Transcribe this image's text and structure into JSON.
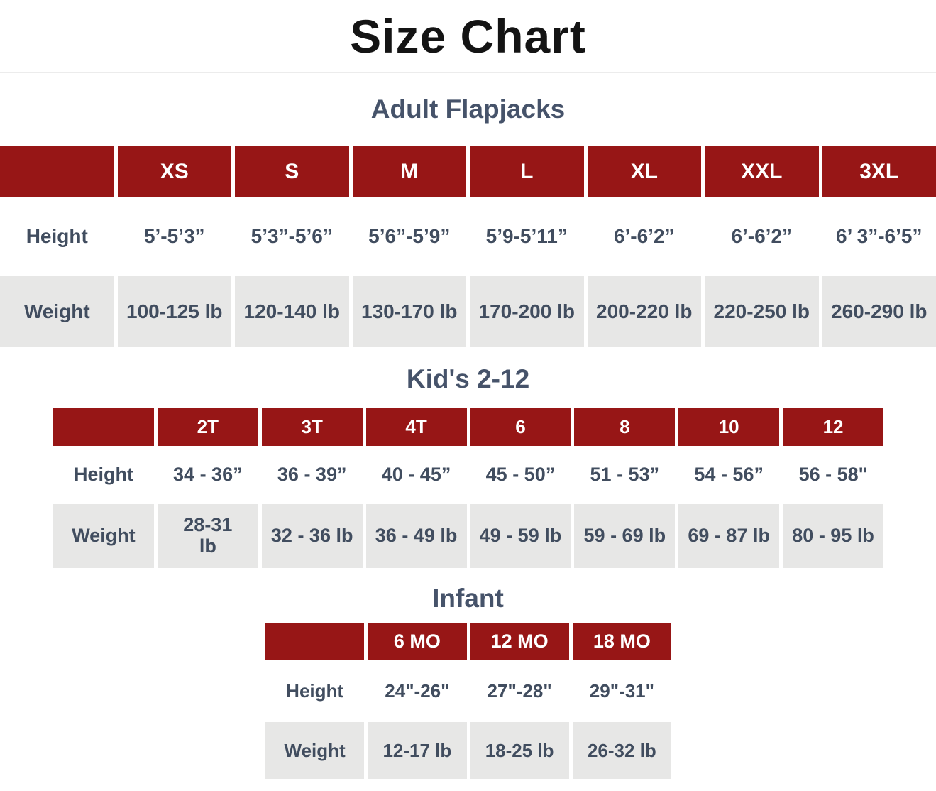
{
  "page": {
    "title": "Size Chart"
  },
  "colors": {
    "header_red": "#971616",
    "row_gray": "#e7e7e6",
    "text_slate": "#414d5f",
    "section_title_slate": "#46536a",
    "title_black": "#141414"
  },
  "tables": [
    {
      "section_title": "Adult Flapjacks",
      "row_labels": {
        "height": "Height",
        "weight": "Weight"
      },
      "sizes": [
        "XS",
        "S",
        "M",
        "L",
        "XL",
        "XXL",
        "3XL"
      ],
      "heights": [
        "5’-5’3”",
        "5’3”-5’6”",
        "5’6”-5’9”",
        "5’9-5’11”",
        "6’-6’2”",
        "6’-6’2”",
        "6’ 3”-6’5”"
      ],
      "weights": [
        "100-125 lb",
        "120-140 lb",
        "130-170 lb",
        "170-200 lb",
        "200-220 lb",
        "220-250 lb",
        "260-290 lb"
      ]
    },
    {
      "section_title": "Kid's 2-12",
      "row_labels": {
        "height": "Height",
        "weight": "Weight"
      },
      "sizes": [
        "2T",
        "3T",
        "4T",
        "6",
        "8",
        "10",
        "12"
      ],
      "heights": [
        "34 - 36”",
        "36 - 39”",
        "40 - 45”",
        "45 - 50”",
        "51 - 53”",
        "54 - 56”",
        "56 - 58\""
      ],
      "weights": [
        "28-31 lb",
        "32 - 36 lb",
        "36 - 49 lb",
        "49 - 59 lb",
        "59 - 69 lb",
        "69 - 87 lb",
        "80 - 95 lb"
      ]
    },
    {
      "section_title": "Infant",
      "row_labels": {
        "height": "Height",
        "weight": "Weight"
      },
      "sizes": [
        "6 MO",
        "12 MO",
        "18 MO"
      ],
      "heights": [
        "24\"-26\"",
        "27\"-28\"",
        "29\"-31\""
      ],
      "weights": [
        "12-17 lb",
        "18-25 lb",
        "26-32 lb"
      ]
    }
  ]
}
